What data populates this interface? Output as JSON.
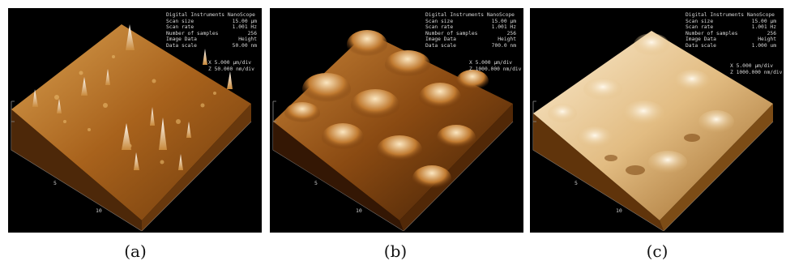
{
  "panels": [
    {
      "id": "a",
      "caption": "(a)",
      "meta": {
        "title": "Digital Instruments NanoScope",
        "rows": [
          {
            "label": "Scan size",
            "value": "15.00 µm"
          },
          {
            "label": "Scan rate",
            "value": "1.001 Hz"
          },
          {
            "label": "Number of samples",
            "value": "256"
          },
          {
            "label": "Image Data",
            "value": "Height"
          },
          {
            "label": "Data scale",
            "value": "50.00 nm"
          }
        ]
      },
      "scale": {
        "x": "X  5.000 µm/div",
        "z": "Z  50.000 nm/div"
      },
      "axis_ticks": [
        "5",
        "10"
      ]
    },
    {
      "id": "b",
      "caption": "(b)",
      "meta": {
        "title": "Digital Instruments NanoScope",
        "rows": [
          {
            "label": "Scan size",
            "value": "15.00 µm"
          },
          {
            "label": "Scan rate",
            "value": "1.001 Hz"
          },
          {
            "label": "Number of samples",
            "value": "256"
          },
          {
            "label": "Image Data",
            "value": "Height"
          },
          {
            "label": "Data scale",
            "value": "700.0 nm"
          }
        ]
      },
      "scale": {
        "x": "X  5.000 µm/div",
        "z": "Z  1000.000 nm/div"
      },
      "axis_ticks": [
        "5",
        "10"
      ]
    },
    {
      "id": "c",
      "caption": "(c)",
      "meta": {
        "title": "Digital Instruments NanoScope",
        "rows": [
          {
            "label": "Scan size",
            "value": "15.00 µm"
          },
          {
            "label": "Scan rate",
            "value": "1.001 Hz"
          },
          {
            "label": "Number of samples",
            "value": "256"
          },
          {
            "label": "Image Data",
            "value": "Height"
          },
          {
            "label": "Data scale",
            "value": "1.000 um"
          }
        ]
      },
      "scale": {
        "x": "X  5.000 µm/div",
        "z": "Z  1000.000 nm/div"
      },
      "axis_ticks": [
        "5",
        "10"
      ]
    }
  ],
  "colors": {
    "panel_a_surface": "#b06a1e",
    "panel_b_surface": "#8a4a12",
    "panel_c_surface": "#e8c890",
    "background": "#000000"
  }
}
